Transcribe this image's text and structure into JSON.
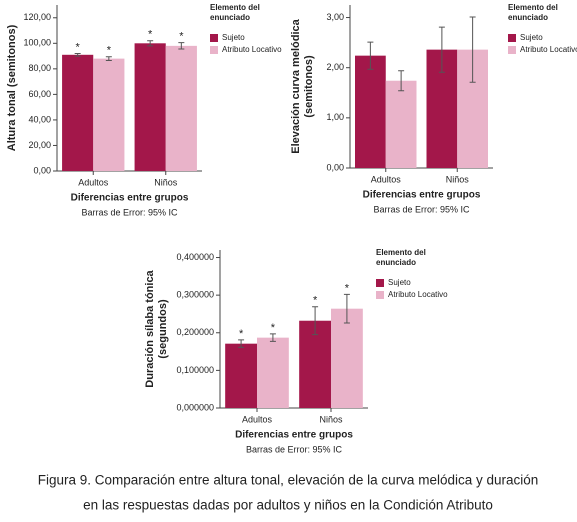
{
  "chart_data": [
    {
      "type": "bar",
      "ylabel": [
        "Altura tonal (semitonos)"
      ],
      "xlabel": "Diferencias entre grupos",
      "note": "Barras de Error: 95% IC",
      "legend_title": [
        "Elemento del",
        "enunciado"
      ],
      "categories": [
        "Adultos",
        "Niños"
      ],
      "series": [
        {
          "name": "Sujeto",
          "color": "#a3174a",
          "values": [
            91,
            100
          ],
          "errors": [
            1,
            2
          ],
          "annotations": [
            "*",
            "*"
          ]
        },
        {
          "name": "Atributo Locativo",
          "color": "#e9b3c9",
          "values": [
            88,
            98
          ],
          "errors": [
            1.5,
            2.5
          ],
          "annotations": [
            "*",
            "*"
          ]
        }
      ],
      "ylim": [
        0,
        130
      ],
      "yticks": [
        {
          "value": 0,
          "label": "0,00"
        },
        {
          "value": 20,
          "label": "20,00"
        },
        {
          "value": 40,
          "label": "40,00"
        },
        {
          "value": 60,
          "label": "60,00"
        },
        {
          "value": 80,
          "label": "80,00"
        },
        {
          "value": 100,
          "label": "100,00"
        },
        {
          "value": 120,
          "label": "120,00"
        }
      ]
    },
    {
      "type": "bar",
      "ylabel": [
        "Elevación curva melódica",
        "(semitonos)"
      ],
      "xlabel": "Diferencias entre grupos",
      "note": "Barras de Error: 95% IC",
      "legend_title": [
        "Elemento del",
        "enunciado"
      ],
      "categories": [
        "Adultos",
        "Niños"
      ],
      "series": [
        {
          "name": "Sujeto",
          "color": "#a3174a",
          "values": [
            2.24,
            2.36
          ],
          "errors": [
            0.27,
            0.45
          ]
        },
        {
          "name": "Atributo Locativo",
          "color": "#e9b3c9",
          "values": [
            1.74,
            2.36
          ],
          "errors": [
            0.2,
            0.65
          ]
        }
      ],
      "ylim": [
        0,
        3.25
      ],
      "yticks": [
        {
          "value": 0,
          "label": "0,00"
        },
        {
          "value": 1,
          "label": "1,00"
        },
        {
          "value": 2,
          "label": "2,00"
        },
        {
          "value": 3,
          "label": "3,00"
        }
      ]
    },
    {
      "type": "bar",
      "ylabel": [
        "Duración sílaba tónica",
        "(segundos)"
      ],
      "xlabel": "Diferencias entre grupos",
      "note": "Barras de Error: 95% IC",
      "legend_title": [
        "Elemento del",
        "enunciado"
      ],
      "categories": [
        "Adultos",
        "Niños"
      ],
      "series": [
        {
          "name": "Sujeto",
          "color": "#a3174a",
          "values": [
            0.171,
            0.232
          ],
          "errors": [
            0.01,
            0.037
          ],
          "annotations": [
            "*",
            "*"
          ]
        },
        {
          "name": "Atributo Locativo",
          "color": "#e9b3c9",
          "values": [
            0.187,
            0.264
          ],
          "errors": [
            0.01,
            0.038
          ],
          "annotations": [
            "*",
            "*"
          ]
        }
      ],
      "ylim": [
        0,
        0.42
      ],
      "yticks": [
        {
          "value": 0,
          "label": "0,000000"
        },
        {
          "value": 0.1,
          "label": "0,100000"
        },
        {
          "value": 0.2,
          "label": "0,200000"
        },
        {
          "value": 0.3,
          "label": "0,300000"
        },
        {
          "value": 0.4,
          "label": "0,400000"
        }
      ]
    }
  ],
  "caption": [
    "Figura 9. Comparación entre altura tonal, elevación de la curva melódica y duración",
    "en las respuestas dadas por adultos y niños en la Condición Atributo"
  ]
}
